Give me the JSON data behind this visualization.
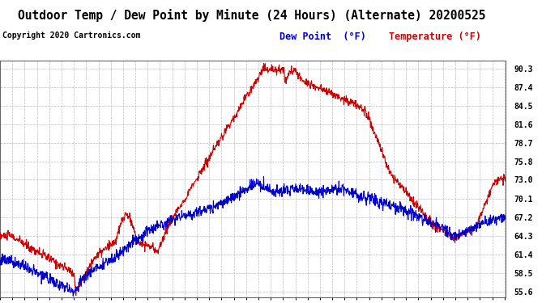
{
  "title": "Outdoor Temp / Dew Point by Minute (24 Hours) (Alternate) 20200525",
  "copyright_text": "Copyright 2020 Cartronics.com",
  "legend_dew": "Dew Point  (°F)",
  "legend_temp": "Temperature (°F)",
  "yticks": [
    55.6,
    58.5,
    61.4,
    64.3,
    67.2,
    70.1,
    73.0,
    75.8,
    78.7,
    81.6,
    84.5,
    87.4,
    90.3
  ],
  "ylim": [
    54.8,
    91.5
  ],
  "temp_color": "#cc0000",
  "dew_color": "#0000cc",
  "black_color": "#000000",
  "background_color": "#ffffff",
  "plot_bg_color": "#ffffff",
  "grid_color": "#aaaaaa",
  "title_fontsize": 10.5,
  "tick_fontsize": 7,
  "legend_fontsize": 8.5,
  "copyright_fontsize": 7
}
